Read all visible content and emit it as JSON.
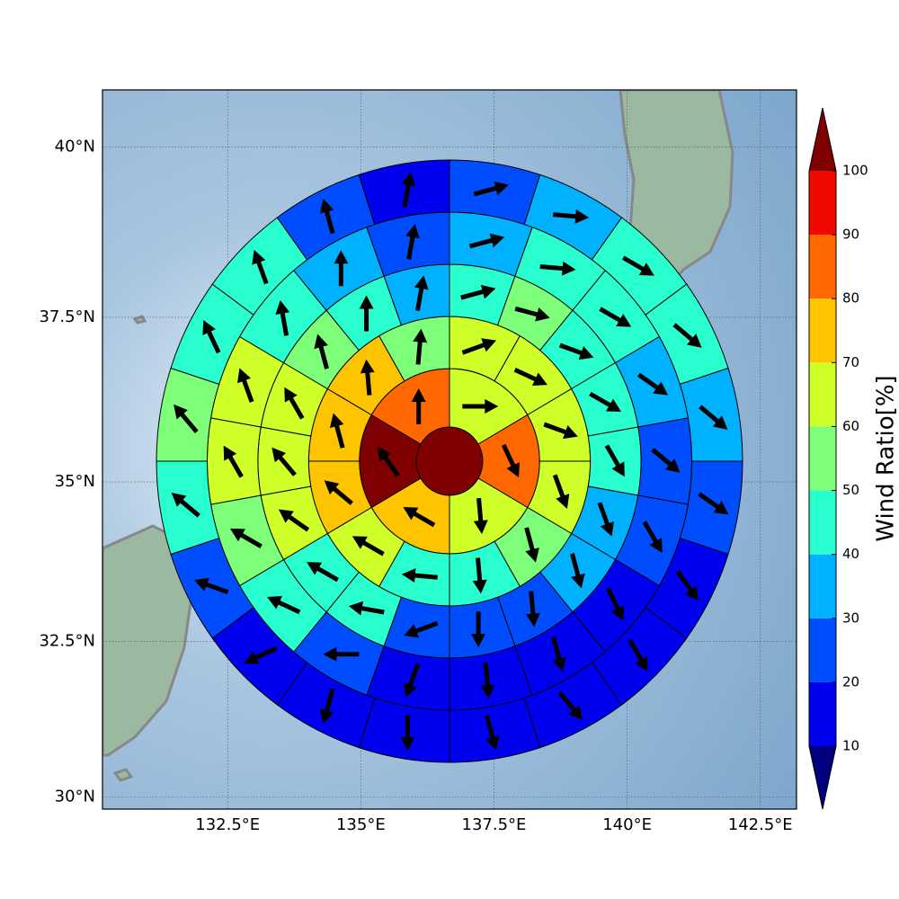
{
  "chart_data": {
    "type": "polar_sectors",
    "projection": "mercator",
    "xlim": [
      130.15,
      143.18
    ],
    "ylim": [
      29.8,
      40.82
    ],
    "xticks": [
      {
        "value": 132.5,
        "label": "132.5°E"
      },
      {
        "value": 135,
        "label": "135°E"
      },
      {
        "value": 137.5,
        "label": "137.5°E"
      },
      {
        "value": 140,
        "label": "140°E"
      },
      {
        "value": 142.5,
        "label": "142.5°E"
      }
    ],
    "yticks": [
      {
        "value": 30,
        "label": "30°N"
      },
      {
        "value": 32.5,
        "label": "32.5°N"
      },
      {
        "value": 35,
        "label": "35°N"
      },
      {
        "value": 37.5,
        "label": "37.5°N"
      },
      {
        "value": 40,
        "label": "40°N"
      }
    ],
    "grid": true,
    "center_value": 105,
    "rings": [
      {
        "values": [
          65,
          85,
          65,
          75,
          105,
          85
        ],
        "directions": [
          90,
          155,
          175,
          300,
          325,
          0
        ]
      },
      {
        "values": [
          65,
          65,
          65,
          65,
          55,
          45,
          45,
          65,
          75,
          75,
          75,
          55
        ],
        "directions": [
          70,
          115,
          110,
          160,
          165,
          175,
          275,
          300,
          310,
          345,
          355,
          5
        ]
      },
      {
        "values": [
          45,
          55,
          45,
          45,
          45,
          35,
          35,
          25,
          25,
          25,
          45,
          45,
          65,
          65,
          65,
          55,
          45,
          35
        ],
        "directions": [
          75,
          105,
          110,
          120,
          150,
          160,
          165,
          175,
          180,
          250,
          280,
          300,
          305,
          320,
          330,
          345,
          0,
          10
        ]
      },
      {
        "values": [
          35,
          45,
          45,
          35,
          25,
          25,
          15,
          15,
          15,
          15,
          25,
          45,
          55,
          65,
          65,
          45,
          35,
          25
        ],
        "directions": [
          75,
          95,
          120,
          125,
          130,
          150,
          155,
          165,
          175,
          200,
          270,
          295,
          300,
          330,
          340,
          350,
          0,
          10
        ]
      },
      {
        "values": [
          25,
          35,
          45,
          45,
          35,
          25,
          15,
          15,
          15,
          15,
          15,
          15,
          15,
          25,
          45,
          55,
          45,
          45,
          25,
          15
        ],
        "directions": [
          75,
          95,
          120,
          130,
          130,
          125,
          145,
          150,
          140,
          165,
          180,
          195,
          245,
          290,
          310,
          320,
          335,
          340,
          345,
          10
        ]
      }
    ],
    "colorbar": {
      "label": "Wind Ratio[%]",
      "ticks": [
        10,
        20,
        30,
        40,
        50,
        60,
        70,
        80,
        90,
        100
      ],
      "colors": [
        "#0000f1",
        "#004dff",
        "#00b1ff",
        "#29ffce",
        "#7dff7a",
        "#ceff29",
        "#ffc400",
        "#ff6800",
        "#f10800"
      ],
      "under_color": "#00007f",
      "over_color": "#7f0000"
    }
  }
}
